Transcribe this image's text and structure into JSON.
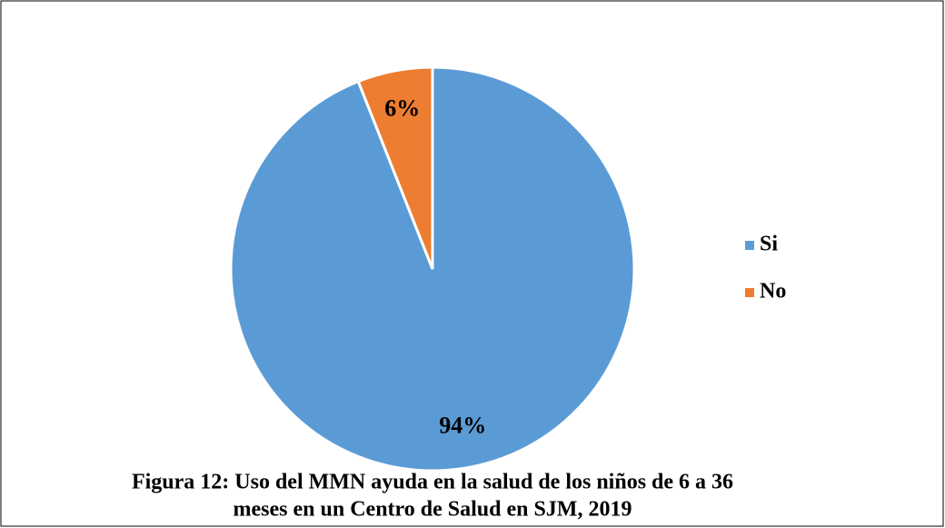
{
  "chart_data": {
    "type": "pie",
    "title": [
      "Figura 12: Uso del MMN ayuda en la salud de los niños de 6 a 36",
      "meses en un Centro de Salud en SJM, 2019"
    ],
    "categories": [
      "Si",
      "No"
    ],
    "values": [
      94,
      6
    ],
    "value_labels": [
      "94%",
      "6%"
    ],
    "colors": [
      "#5b9bd5",
      "#ed7d31"
    ],
    "legend": "right"
  }
}
